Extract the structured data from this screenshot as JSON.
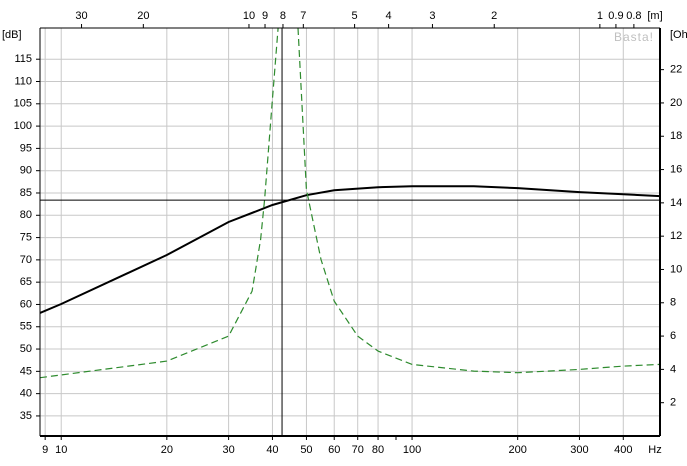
{
  "chart_data": {
    "type": "line",
    "x_scale": "log",
    "xlim": [
      8.7,
      509
    ],
    "xticks": [
      9,
      10,
      20,
      30,
      40,
      50,
      60,
      70,
      80,
      100,
      200,
      300,
      400
    ],
    "xminorticks": [
      90
    ],
    "xlabel": "Hz",
    "x2_scale": "log",
    "x2lim": [
      39.4,
      0.674
    ],
    "x2ticks": [
      30,
      20,
      10,
      9,
      8,
      7,
      5,
      4,
      3,
      2,
      1,
      0.9,
      0.8
    ],
    "x2label": "[m]",
    "ylim": [
      30.5,
      122
    ],
    "yticks": [
      35,
      40,
      45,
      50,
      55,
      60,
      65,
      70,
      75,
      80,
      85,
      90,
      95,
      100,
      105,
      110,
      115
    ],
    "ylabel": "[dB]",
    "y2lim": [
      0,
      24.5
    ],
    "y2ticks": [
      2,
      4,
      6,
      8,
      10,
      12,
      14,
      16,
      18,
      20,
      22
    ],
    "y2label": "[Ohm]",
    "grid": true,
    "watermark": "Basta!",
    "cursor": {
      "x": 42.6,
      "y": 83.4
    },
    "series": [
      {
        "color": "#000000",
        "dash": false,
        "x": [
          8.7,
          10,
          20,
          30,
          40,
          50,
          60,
          80,
          100,
          150,
          200,
          300,
          400,
          509
        ],
        "values": [
          58.1,
          60.1,
          71.1,
          78.5,
          82.3,
          84.5,
          85.6,
          86.3,
          86.5,
          86.5,
          86.1,
          85.2,
          84.7,
          84.3
        ]
      },
      {
        "color": "#2e8b2e",
        "dash": true,
        "axis": "y2",
        "x": [
          8.7,
          20,
          30,
          35,
          37,
          38,
          40,
          41.5,
          44,
          47.3,
          50,
          55,
          60,
          70,
          80,
          100,
          150,
          200,
          300,
          400,
          509
        ],
        "values": [
          3.5,
          4.5,
          6.0,
          8.7,
          11.8,
          14.2,
          20.2,
          24.5,
          null,
          24.5,
          14.8,
          10.6,
          8.1,
          6.0,
          5.1,
          4.3,
          3.9,
          3.8,
          4.0,
          4.2,
          4.3
        ]
      }
    ]
  }
}
